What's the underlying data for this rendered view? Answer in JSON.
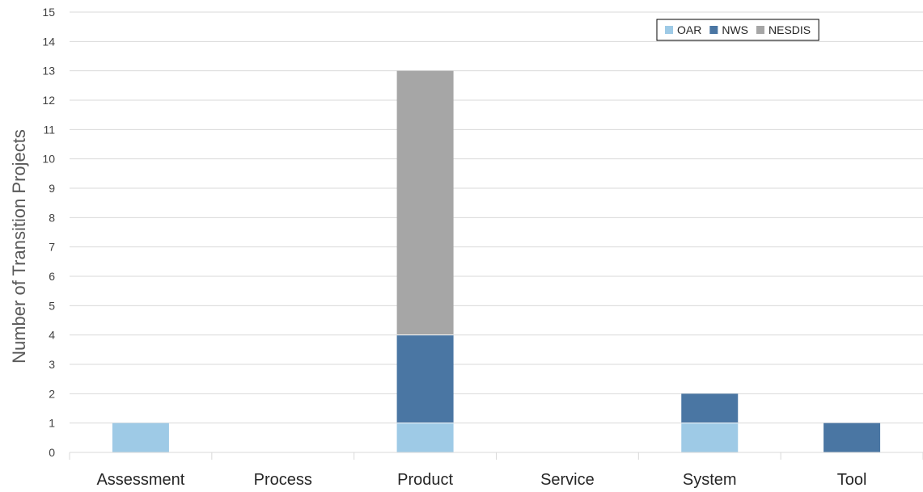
{
  "chart_data": {
    "type": "bar",
    "stacked": true,
    "categories": [
      "Assessment",
      "Process",
      "Product",
      "Service",
      "System",
      "Tool"
    ],
    "series": [
      {
        "name": "OAR",
        "color": "#9ecae6",
        "values": [
          1,
          0,
          1,
          0,
          1,
          0
        ]
      },
      {
        "name": "NWS",
        "color": "#4a76a3",
        "values": [
          0,
          0,
          3,
          0,
          1,
          1
        ]
      },
      {
        "name": "NESDIS",
        "color": "#a6a6a6",
        "values": [
          0,
          0,
          9,
          0,
          0,
          0
        ]
      }
    ],
    "ylabel": "Number of Transition Projects",
    "yticks": [
      "0",
      "1",
      "2",
      "3",
      "4",
      "5",
      "6",
      "7",
      "8",
      "9",
      "10",
      "11",
      "12",
      "13",
      "14",
      "15"
    ],
    "ylim": [
      0,
      15
    ],
    "grid": true,
    "legend": "top-right"
  }
}
